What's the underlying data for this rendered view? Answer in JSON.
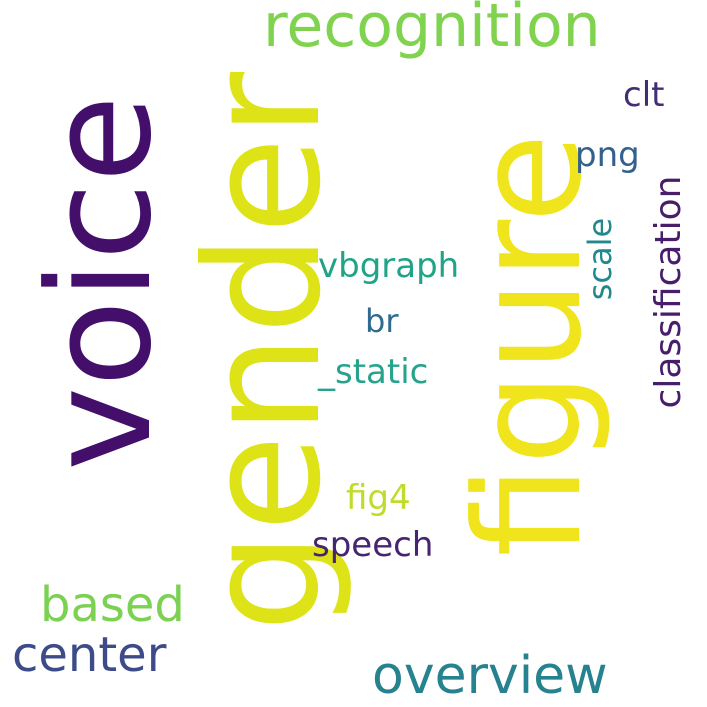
{
  "words": {
    "voice": {
      "text": "voice",
      "color": "#440f6a"
    },
    "gender": {
      "text": "gender",
      "color": "#dde317"
    },
    "figure": {
      "text": "figure",
      "color": "#f0e51d"
    },
    "recognition": {
      "text": "recognition",
      "color": "#80d34e"
    },
    "clt": {
      "text": "clt",
      "color": "#422e74"
    },
    "png": {
      "text": "png",
      "color": "#33618c"
    },
    "classification": {
      "text": "classification",
      "color": "#481e6b"
    },
    "scale": {
      "text": "scale",
      "color": "#22888c"
    },
    "vbgraph": {
      "text": "vbgraph",
      "color": "#1fa488"
    },
    "br": {
      "text": "br",
      "color": "#2e6b8e"
    },
    "static": {
      "text": "_static",
      "color": "#25a38c"
    },
    "fig4": {
      "text": "fig4",
      "color": "#c0dc2a"
    },
    "speech": {
      "text": "speech",
      "color": "#47246f"
    },
    "based": {
      "text": "based",
      "color": "#7bd152"
    },
    "center": {
      "text": "center",
      "color": "#3d4c89"
    },
    "overview": {
      "text": "overview",
      "color": "#25828e"
    }
  }
}
